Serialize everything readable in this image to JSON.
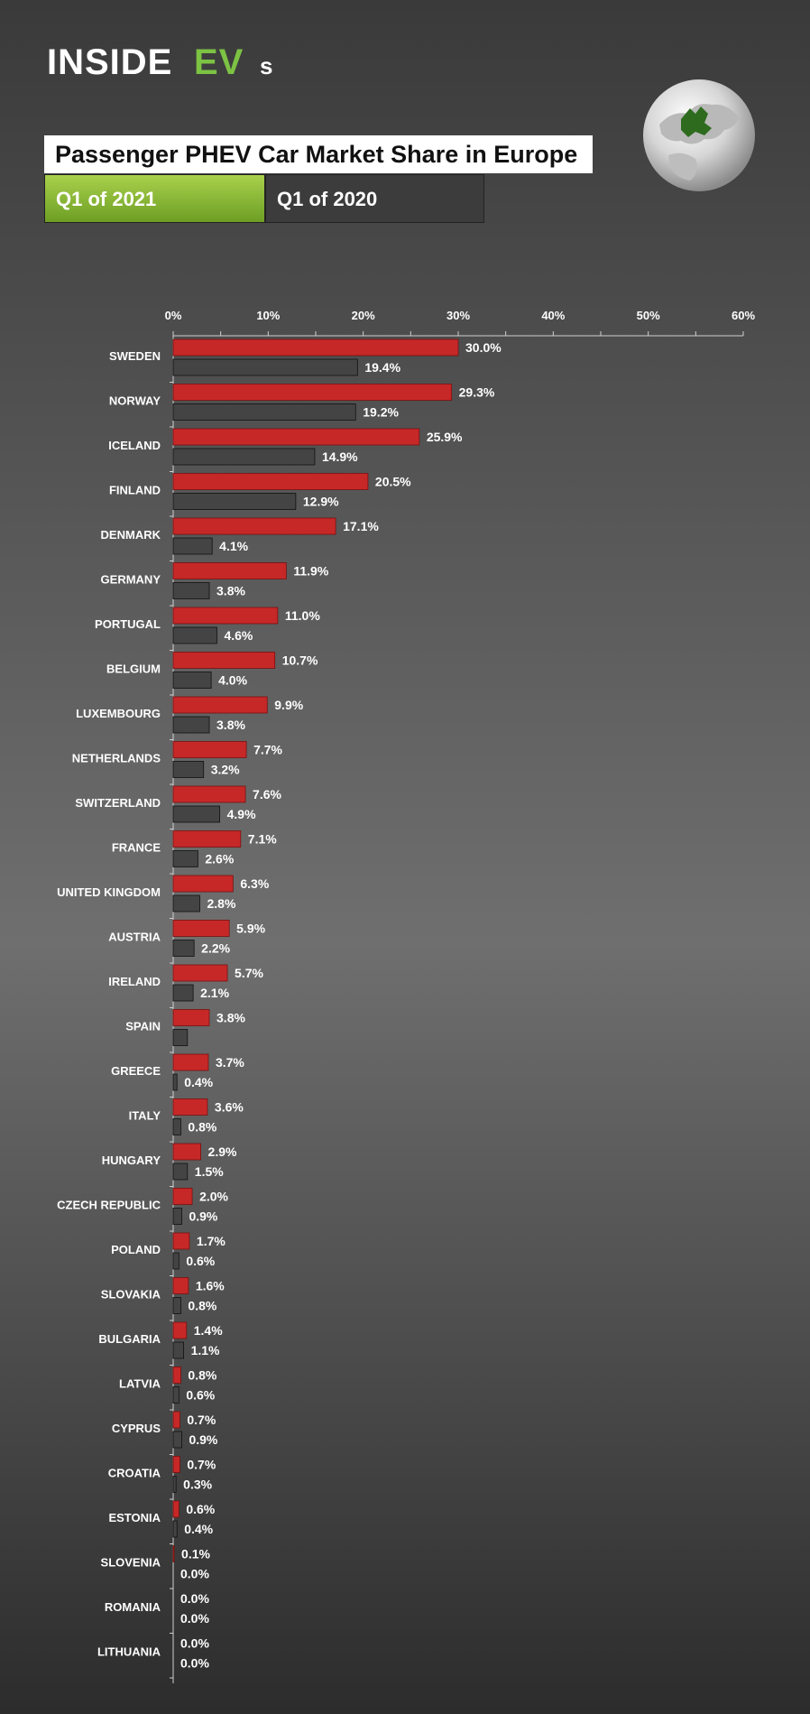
{
  "brand": {
    "inside": "INSIDE",
    "ev": "EV",
    "s": "s"
  },
  "title": "Passenger PHEV Car Market Share in Europe",
  "legend": [
    {
      "label": "Q1 of 2021",
      "color": "#c62828"
    },
    {
      "label": "Q1 of 2020",
      "color": "#444444"
    }
  ],
  "icons": {
    "globe": "europe-globe-icon"
  },
  "chart_data": {
    "type": "bar",
    "orientation": "horizontal",
    "xlim": [
      0,
      60
    ],
    "ticks": [
      "0%",
      "10%",
      "20%",
      "30%",
      "40%",
      "50%",
      "60%"
    ],
    "categories": [
      "SWEDEN",
      "NORWAY",
      "ICELAND",
      "FINLAND",
      "DENMARK",
      "GERMANY",
      "PORTUGAL",
      "BELGIUM",
      "LUXEMBOURG",
      "NETHERLANDS",
      "SWITZERLAND",
      "FRANCE",
      "UNITED KINGDOM",
      "AUSTRIA",
      "IRELAND",
      "SPAIN",
      "GREECE",
      "ITALY",
      "HUNGARY",
      "CZECH REPUBLIC",
      "POLAND",
      "SLOVAKIA",
      "BULGARIA",
      "LATVIA",
      "CYPRUS",
      "CROATIA",
      "ESTONIA",
      "SLOVENIA",
      "ROMANIA",
      "LITHUANIA"
    ],
    "series": [
      {
        "name": "Q1 of 2021",
        "color": "#c62828",
        "values": [
          30.0,
          29.3,
          25.9,
          20.5,
          17.1,
          11.9,
          11.0,
          10.7,
          9.9,
          7.7,
          7.6,
          7.1,
          6.3,
          5.9,
          5.7,
          3.8,
          3.7,
          3.6,
          2.9,
          2.0,
          1.7,
          1.6,
          1.4,
          0.8,
          0.7,
          0.7,
          0.6,
          0.1,
          0.0,
          0.0
        ],
        "labels": [
          "30.0%",
          "29.3%",
          "25.9%",
          "20.5%",
          "17.1%",
          "11.9%",
          "11.0%",
          "10.7%",
          "9.9%",
          "7.7%",
          "7.6%",
          "7.1%",
          "6.3%",
          "5.9%",
          "5.7%",
          "3.8%",
          "3.7%",
          "3.6%",
          "2.9%",
          "2.0%",
          "1.7%",
          "1.6%",
          "1.4%",
          "0.8%",
          "0.7%",
          "0.7%",
          "0.6%",
          "0.1%",
          "0.0%",
          "0.0%"
        ]
      },
      {
        "name": "Q1 of 2020",
        "color": "#444444",
        "values": [
          19.4,
          19.2,
          14.9,
          12.9,
          4.1,
          3.8,
          4.6,
          4.0,
          3.8,
          3.2,
          4.9,
          2.6,
          2.8,
          2.2,
          2.1,
          1.5,
          0.4,
          0.8,
          1.5,
          0.9,
          0.6,
          0.8,
          1.1,
          0.6,
          0.9,
          0.3,
          0.4,
          0.0,
          0.0,
          0.0
        ],
        "labels": [
          "19.4%",
          "19.2%",
          "14.9%",
          "12.9%",
          "4.1%",
          "3.8%",
          "4.6%",
          "4.0%",
          "3.8%",
          "3.2%",
          "4.9%",
          "2.6%",
          "2.8%",
          "2.2%",
          "2.1%",
          "",
          "0.4%",
          "0.8%",
          "1.5%",
          "0.9%",
          "0.6%",
          "0.8%",
          "1.1%",
          "0.6%",
          "0.9%",
          "0.3%",
          "0.4%",
          "0.0%",
          "0.0%",
          "0.0%"
        ]
      }
    ]
  }
}
